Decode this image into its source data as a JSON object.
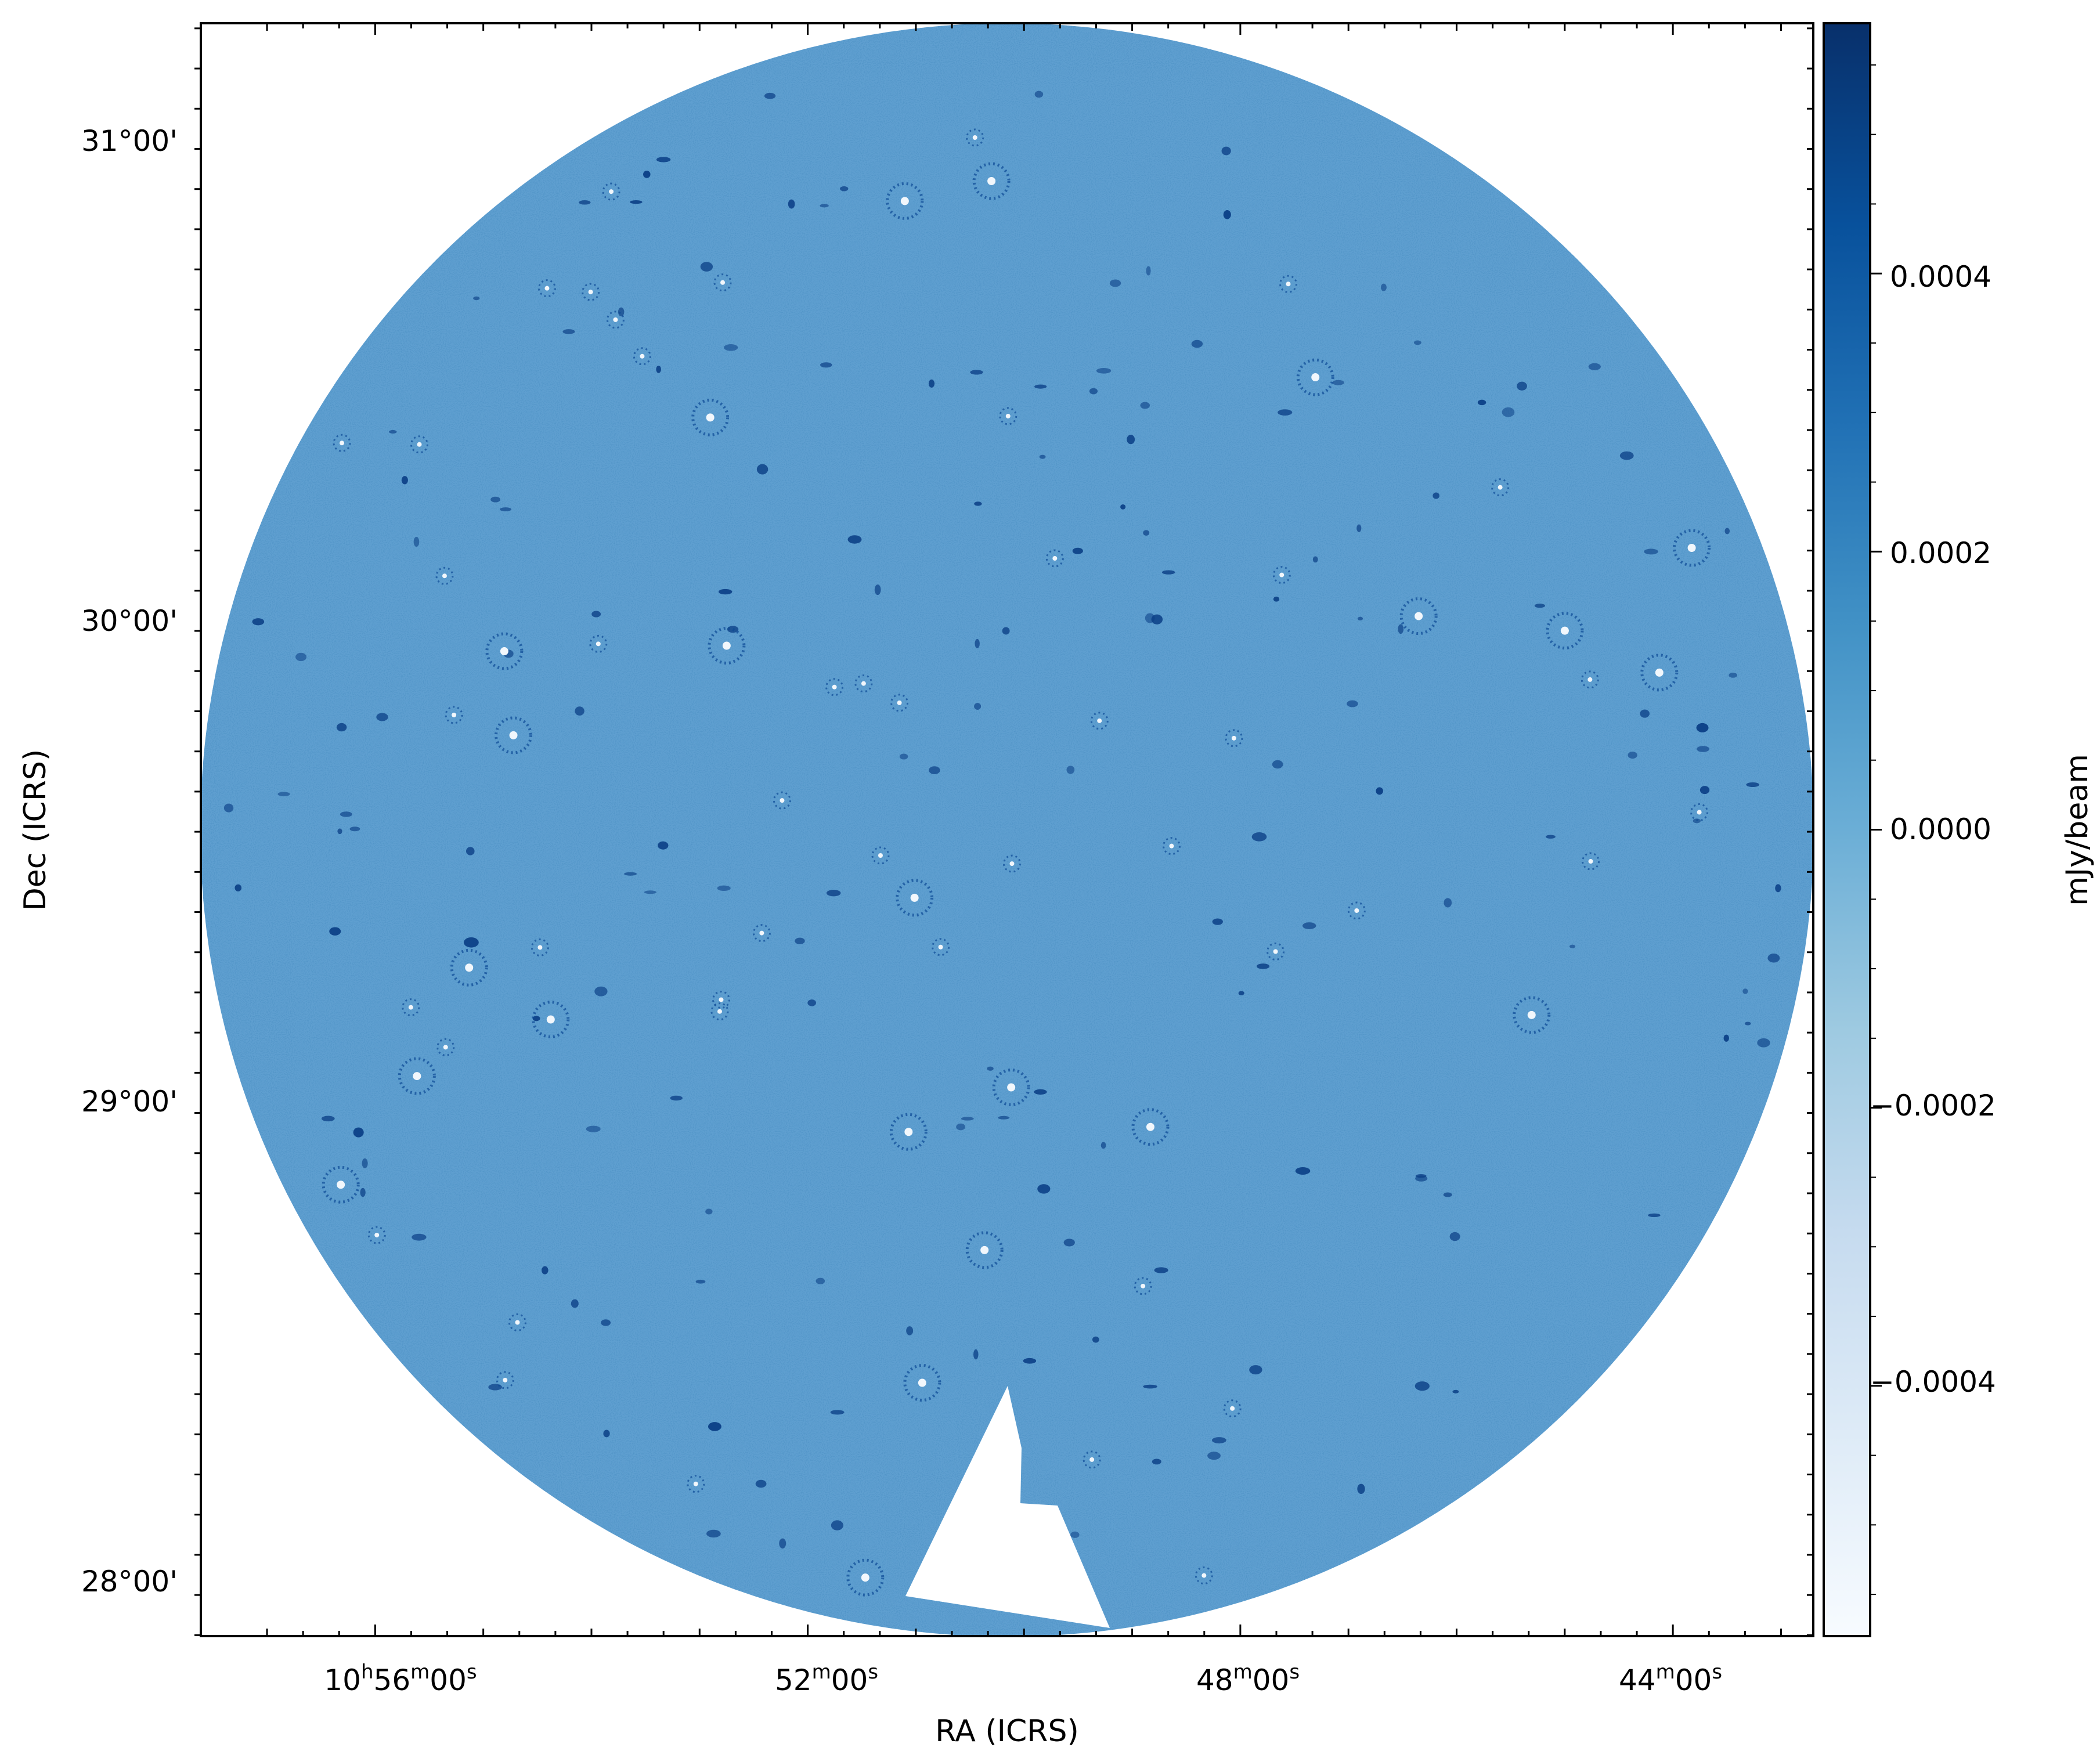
{
  "chart_data": {
    "type": "heatmap",
    "xlabel": "RA (ICRS)",
    "ylabel": "Dec (ICRS)",
    "colorbar_label": "mJy/beam",
    "colormap": "Blues",
    "colormap_stops": [
      "#f7fbff",
      "#deebf7",
      "#c6dbef",
      "#9ecae1",
      "#6baed6",
      "#4292c6",
      "#2171b5",
      "#08519c",
      "#08306b"
    ],
    "image_background": "#5f9fd0",
    "x_ticks": [
      {
        "label": "10h56m00s",
        "h": "10",
        "m": "56",
        "s": "00",
        "ra_hours": 10.9333
      },
      {
        "label": "52m00s",
        "h": "",
        "m": "52",
        "s": "00",
        "ra_hours": 10.8667
      },
      {
        "label": "48m00s",
        "h": "",
        "m": "48",
        "s": "00",
        "ra_hours": 10.8
      },
      {
        "label": "44m00s",
        "h": "",
        "m": "44",
        "s": "00",
        "ra_hours": 10.7333
      }
    ],
    "x_range_hours": [
      10.9602,
      10.7117
    ],
    "y_ticks": [
      {
        "label": "31°00'",
        "dec": 31.0
      },
      {
        "label": "30°00'",
        "dec": 30.0
      },
      {
        "label": "29°00'",
        "dec": 29.0
      },
      {
        "label": "28°00'",
        "dec": 28.0
      }
    ],
    "y_range_deg": [
      27.898,
      31.244
    ],
    "colorbar_ticks": [
      {
        "label": "0.0004",
        "value": 0.0004
      },
      {
        "label": "0.0002",
        "value": 0.0002
      },
      {
        "label": "0.0000",
        "value": 0.0
      },
      {
        "label": "−0.0002",
        "value": -0.0002
      },
      {
        "label": "−0.0004",
        "value": -0.0004
      }
    ],
    "colorbar_range": [
      -0.00058,
      0.00058
    ]
  }
}
